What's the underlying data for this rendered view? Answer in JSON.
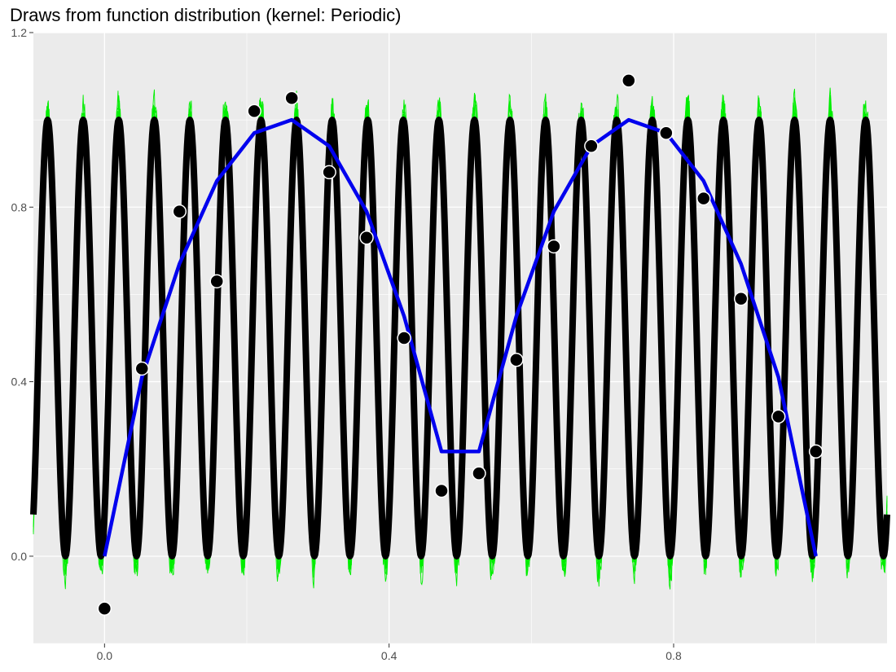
{
  "chart_data": {
    "type": "line",
    "title": "Draws from function distribution (kernel: Periodic)",
    "xlabel": "",
    "ylabel": "",
    "xlim": [
      -0.1,
      1.1
    ],
    "ylim": [
      -0.2,
      1.2
    ],
    "x_ticks": [
      "0.0",
      "0.4",
      "0.8"
    ],
    "y_ticks": [
      "0.0",
      "0.4",
      "0.8",
      "1.2"
    ],
    "grid": true,
    "legend": "none",
    "colors": {
      "panel": "#ebebeb",
      "grid": "#ffffff",
      "draws": "#00ee00",
      "mean": "#000000",
      "true_function": "#0000ee",
      "points": "#000000"
    },
    "periodic_draws": {
      "x_range": [
        -0.1,
        1.1
      ],
      "cycles_per_unit": 20,
      "phase_x_at_first_peak": -0.08,
      "amplitude": 0.5,
      "center": 0.5,
      "series_count": 10
    },
    "true_function": {
      "x": [
        0.0,
        0.0526,
        0.1053,
        0.1579,
        0.2105,
        0.2632,
        0.3158,
        0.3684,
        0.4211,
        0.4737,
        0.5263,
        0.5789,
        0.6316,
        0.6842,
        0.7368,
        0.7895,
        0.8421,
        0.8947,
        0.9474,
        1.0
      ],
      "y": [
        0.0,
        0.41,
        0.67,
        0.86,
        0.97,
        1.0,
        0.94,
        0.79,
        0.55,
        0.24,
        0.24,
        0.55,
        0.79,
        0.94,
        1.0,
        0.97,
        0.86,
        0.67,
        0.41,
        0.0
      ]
    },
    "points": {
      "x": [
        0.0,
        0.0526,
        0.1053,
        0.1579,
        0.2105,
        0.2632,
        0.3158,
        0.3684,
        0.4211,
        0.4737,
        0.5263,
        0.5789,
        0.6316,
        0.6842,
        0.7368,
        0.7895,
        0.8421,
        0.8947,
        0.9474,
        1.0
      ],
      "y": [
        -0.12,
        0.43,
        0.79,
        0.63,
        1.02,
        1.05,
        0.88,
        0.73,
        0.5,
        0.15,
        0.19,
        0.45,
        0.71,
        0.94,
        1.09,
        0.97,
        0.82,
        0.59,
        0.32,
        0.24
      ]
    }
  }
}
